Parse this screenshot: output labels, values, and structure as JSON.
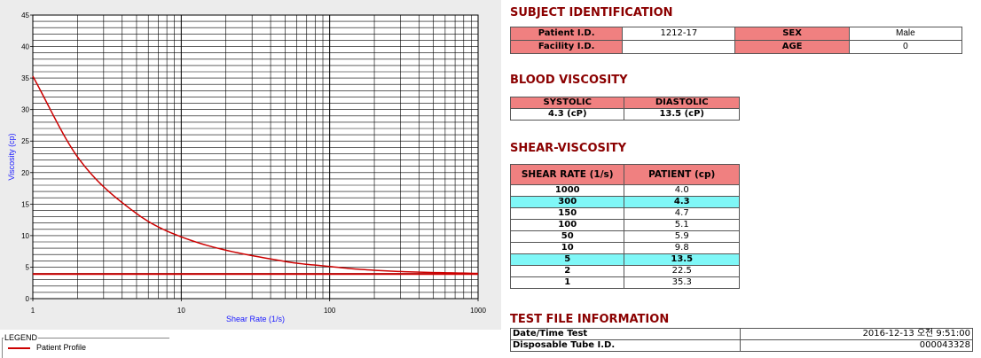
{
  "chart_data": {
    "type": "line",
    "title": "",
    "xlabel": "Shear Rate (1/s)",
    "ylabel": "Viscosity (cp)",
    "xscale": "log",
    "xlim": [
      1,
      1000
    ],
    "ylim": [
      0,
      45
    ],
    "x_ticks": [
      "1",
      "10",
      "100",
      "1000"
    ],
    "y_ticks": [
      "0",
      "5",
      "10",
      "15",
      "20",
      "25",
      "30",
      "35",
      "40",
      "45"
    ],
    "grid": true,
    "series": [
      {
        "name": "Patient Profile",
        "color": "#cc0000",
        "x": [
          1,
          2,
          5,
          10,
          50,
          100,
          150,
          300,
          1000
        ],
        "y": [
          35.3,
          22.5,
          13.5,
          9.8,
          5.9,
          5.1,
          4.7,
          4.3,
          4.0
        ]
      }
    ],
    "reference_line": {
      "y": 3.9,
      "color": "#cc0000"
    }
  },
  "legend": {
    "title": "LEGEND",
    "items": [
      {
        "label": "Patient Profile",
        "color": "#cc0000"
      }
    ]
  },
  "subject": {
    "title": "SUBJECT IDENTIFICATION",
    "patient_id_label": "Patient I.D.",
    "patient_id": "1212-17",
    "sex_label": "SEX",
    "sex": "Male",
    "facility_id_label": "Facility I.D.",
    "facility_id": "",
    "age_label": "AGE",
    "age": "0"
  },
  "blood": {
    "title": "BLOOD VISCOSITY",
    "systolic_label": "SYSTOLIC",
    "systolic": "4.3 (cP)",
    "diastolic_label": "DIASTOLIC",
    "diastolic": "13.5 (cP)"
  },
  "shear": {
    "title": "SHEAR-VISCOSITY",
    "col1": "SHEAR RATE (1/s)",
    "col2": "PATIENT (cp)",
    "rows": [
      {
        "rate": "1000",
        "patient": "4.0",
        "hl": false
      },
      {
        "rate": "300",
        "patient": "4.3",
        "hl": true
      },
      {
        "rate": "150",
        "patient": "4.7",
        "hl": false
      },
      {
        "rate": "100",
        "patient": "5.1",
        "hl": false
      },
      {
        "rate": "50",
        "patient": "5.9",
        "hl": false
      },
      {
        "rate": "10",
        "patient": "9.8",
        "hl": false
      },
      {
        "rate": "5",
        "patient": "13.5",
        "hl": true
      },
      {
        "rate": "2",
        "patient": "22.5",
        "hl": false
      },
      {
        "rate": "1",
        "patient": "35.3",
        "hl": false
      }
    ]
  },
  "testfile": {
    "title": "TEST FILE INFORMATION",
    "date_label": "Date/Time Test",
    "date_value": "2016-12-13  오전 9:51:00",
    "tube_label": "Disposable Tube I.D.",
    "tube_value": "000043328"
  }
}
